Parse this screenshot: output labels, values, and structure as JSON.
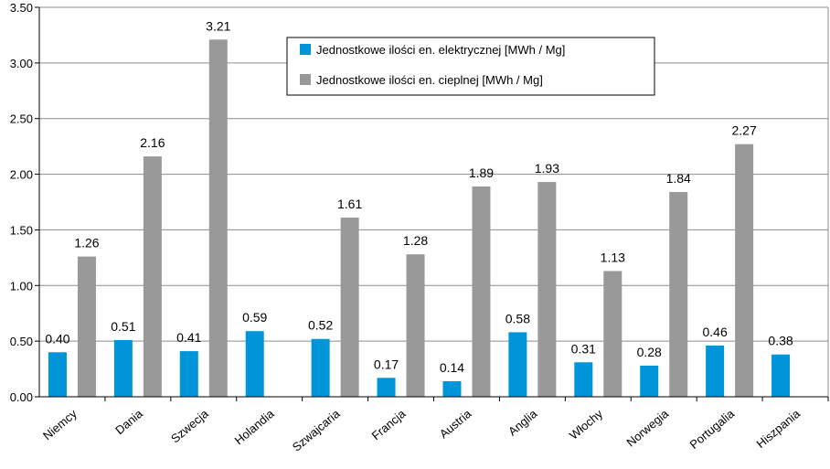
{
  "chart_data": {
    "type": "bar",
    "categories": [
      "Niemcy",
      "Dania",
      "Szwecja",
      "Holandia",
      "Szwajcaria",
      "Francja",
      "Austria",
      "Anglia",
      "Włochy",
      "Norwegia",
      "Portugalia",
      "Hiszpania"
    ],
    "series": [
      {
        "name": "Jednostkowe ilości en. elektrycznej [MWh / Mg]",
        "color": "#0095d9",
        "values": [
          0.4,
          0.51,
          0.41,
          0.59,
          0.52,
          0.17,
          0.14,
          0.58,
          0.31,
          0.28,
          0.46,
          0.38
        ],
        "labels": [
          "0.40",
          "0.51",
          "0.41",
          "0.59",
          "0.52",
          "0.17",
          "0.14",
          "0.58",
          "0.31",
          "0.28",
          "0.46",
          "0.38"
        ]
      },
      {
        "name": "Jednostkowe ilości en. cieplnej [MWh / Mg]",
        "color": "#999999",
        "values": [
          1.26,
          2.16,
          3.21,
          null,
          1.61,
          1.28,
          1.89,
          1.93,
          1.13,
          1.84,
          2.27,
          null
        ],
        "labels": [
          "1.26",
          "2.16",
          "3.21",
          "",
          "1.61",
          "1.28",
          "1.89",
          "1.93",
          "1.13",
          "1.84",
          "2.27",
          ""
        ]
      }
    ],
    "ylim": [
      0,
      3.5
    ],
    "yticks": [
      "0.00",
      "0.50",
      "1.00",
      "1.50",
      "2.00",
      "2.50",
      "3.00",
      "3.50"
    ],
    "grid": true,
    "legend": "top-center"
  }
}
